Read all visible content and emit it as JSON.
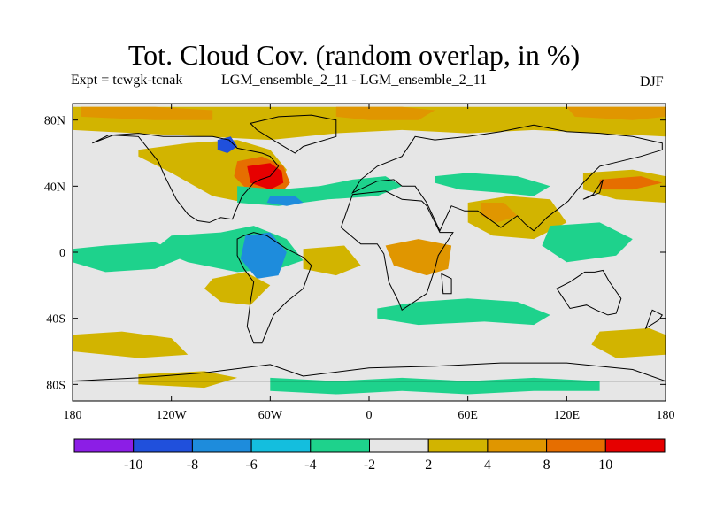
{
  "title": "Tot. Cloud Cov. (random overlap, in %)",
  "expt_label": "Expt = tcwgk-tcnak",
  "subtitle": "LGM_ensemble_2_11 - LGM_ensemble_2_11",
  "season": "DJF",
  "lat_ticks": [
    {
      "value": 80,
      "label": "80N"
    },
    {
      "value": 40,
      "label": "40N"
    },
    {
      "value": 0,
      "label": "0"
    },
    {
      "value": -40,
      "label": "40S"
    },
    {
      "value": -80,
      "label": "80S"
    }
  ],
  "lon_ticks": [
    {
      "value": -180,
      "label": "180"
    },
    {
      "value": -120,
      "label": "120W"
    },
    {
      "value": -60,
      "label": "60W"
    },
    {
      "value": 0,
      "label": "0"
    },
    {
      "value": 60,
      "label": "60E"
    },
    {
      "value": 120,
      "label": "120E"
    },
    {
      "value": 180,
      "label": "180"
    }
  ],
  "colorbar": {
    "bins": [
      {
        "color": "#8c1ee6"
      },
      {
        "color": "#2050dc"
      },
      {
        "color": "#1e8cdc"
      },
      {
        "color": "#14bede"
      },
      {
        "color": "#1ed28c"
      },
      {
        "color": "#e6e6e6"
      },
      {
        "color": "#d2b400"
      },
      {
        "color": "#e09600"
      },
      {
        "color": "#e66e00"
      },
      {
        "color": "#e60000"
      }
    ],
    "labels": [
      "-10",
      "-8",
      "-6",
      "-4",
      "-2",
      "2",
      "4",
      "8",
      "10"
    ]
  },
  "colors": {
    "neutral": "#e6e6e6",
    "coastline": "#000000"
  },
  "anomalies": [
    {
      "name": "north-polar-band",
      "color": "#d2b400",
      "lon": [
        -180,
        -140,
        -100,
        -60,
        -20,
        20,
        60,
        100,
        140,
        180,
        180,
        140,
        100,
        60,
        20,
        -20,
        -60,
        -100,
        -140,
        -180
      ],
      "lat": [
        88,
        88,
        88,
        88,
        88,
        88,
        88,
        88,
        88,
        88,
        70,
        72,
        74,
        72,
        74,
        72,
        68,
        70,
        72,
        74
      ]
    },
    {
      "name": "north-polar-orange-1",
      "color": "#e09600",
      "lon": [
        -175,
        -130,
        -95,
        -95,
        -130,
        -175
      ],
      "lat": [
        88,
        88,
        86,
        80,
        80,
        82
      ]
    },
    {
      "name": "north-polar-orange-2",
      "color": "#e09600",
      "lon": [
        -20,
        20,
        40,
        30,
        0,
        -20
      ],
      "lat": [
        88,
        88,
        86,
        80,
        80,
        82
      ]
    },
    {
      "name": "north-polar-orange-3",
      "color": "#e09600",
      "lon": [
        120,
        170,
        180,
        180,
        160,
        125
      ],
      "lat": [
        88,
        88,
        88,
        82,
        80,
        82
      ]
    },
    {
      "name": "canada-gain",
      "color": "#d2b400",
      "lon": [
        -140,
        -110,
        -80,
        -60,
        -50,
        -55,
        -75,
        -95,
        -120,
        -140
      ],
      "lat": [
        62,
        66,
        68,
        62,
        50,
        38,
        30,
        34,
        48,
        58
      ]
    },
    {
      "name": "labrador-red",
      "color": "#e66e00",
      "lon": [
        -80,
        -65,
        -52,
        -48,
        -55,
        -72,
        -82
      ],
      "lat": [
        55,
        58,
        52,
        42,
        34,
        36,
        46
      ]
    },
    {
      "name": "labrador-core",
      "color": "#e60000",
      "lon": [
        -74,
        -60,
        -53,
        -52,
        -60,
        -72
      ],
      "lat": [
        52,
        54,
        49,
        42,
        38,
        42
      ]
    },
    {
      "name": "hudson-blue",
      "color": "#2050dc",
      "lon": [
        -92,
        -84,
        -80,
        -86,
        -92
      ],
      "lat": [
        68,
        70,
        64,
        60,
        62
      ]
    },
    {
      "name": "atlantic-green-band",
      "color": "#1ed28c",
      "lon": [
        -80,
        -55,
        -30,
        -10,
        10,
        20,
        5,
        -25,
        -55,
        -80
      ],
      "lat": [
        40,
        38,
        40,
        44,
        46,
        40,
        34,
        32,
        28,
        30
      ]
    },
    {
      "name": "gulf-blue",
      "color": "#1e8cdc",
      "lon": [
        -60,
        -45,
        -40,
        -50,
        -62
      ],
      "lat": [
        34,
        34,
        30,
        28,
        30
      ]
    },
    {
      "name": "eurasia-green",
      "color": "#1ed28c",
      "lon": [
        40,
        60,
        90,
        110,
        100,
        80,
        55,
        40
      ],
      "lat": [
        46,
        48,
        46,
        40,
        34,
        36,
        38,
        42
      ]
    },
    {
      "name": "tropical-atlantic-green",
      "color": "#1ed28c",
      "lon": [
        -120,
        -90,
        -70,
        -50,
        -40,
        -55,
        -80,
        -110,
        -130
      ],
      "lat": [
        10,
        12,
        16,
        8,
        -5,
        -10,
        -12,
        -6,
        2
      ]
    },
    {
      "name": "amazon-blue",
      "color": "#1e8cdc",
      "lon": [
        -75,
        -60,
        -50,
        -55,
        -68,
        -78
      ],
      "lat": [
        10,
        12,
        0,
        -14,
        -16,
        -4
      ]
    },
    {
      "name": "east-pacific-green",
      "color": "#1ed28c",
      "lon": [
        -180,
        -160,
        -130,
        -110,
        -130,
        -160,
        -180
      ],
      "lat": [
        2,
        4,
        6,
        -2,
        -10,
        -12,
        -6
      ]
    },
    {
      "name": "south-america-gain",
      "color": "#d2b400",
      "lon": [
        -95,
        -75,
        -60,
        -72,
        -90,
        -100
      ],
      "lat": [
        -16,
        -12,
        -20,
        -32,
        -30,
        -22
      ]
    },
    {
      "name": "south-atlantic-gain",
      "color": "#d2b400",
      "lon": [
        -40,
        -15,
        -5,
        -20,
        -40
      ],
      "lat": [
        2,
        4,
        -8,
        -14,
        -10
      ]
    },
    {
      "name": "africa-orange",
      "color": "#e09600",
      "lon": [
        10,
        30,
        50,
        48,
        35,
        15
      ],
      "lat": [
        4,
        8,
        4,
        -10,
        -14,
        -8
      ]
    },
    {
      "name": "southern-ocean-green",
      "color": "#1ed28c",
      "lon": [
        5,
        30,
        60,
        90,
        110,
        100,
        70,
        30,
        5
      ],
      "lat": [
        -34,
        -30,
        -28,
        -30,
        -38,
        -44,
        -42,
        -44,
        -40
      ]
    },
    {
      "name": "india-gain",
      "color": "#d2b400",
      "lon": [
        60,
        85,
        110,
        120,
        100,
        75,
        60
      ],
      "lat": [
        30,
        34,
        32,
        18,
        8,
        10,
        18
      ]
    },
    {
      "name": "india-orange",
      "color": "#e09600",
      "lon": [
        68,
        82,
        90,
        78,
        68
      ],
      "lat": [
        30,
        30,
        22,
        18,
        22
      ]
    },
    {
      "name": "pacific-gain",
      "color": "#d2b400",
      "lon": [
        130,
        160,
        180,
        180,
        150,
        130
      ],
      "lat": [
        48,
        50,
        46,
        30,
        32,
        38
      ]
    },
    {
      "name": "kuroshio-orange",
      "color": "#e66e00",
      "lon": [
        140,
        165,
        178,
        160,
        140
      ],
      "lat": [
        44,
        46,
        42,
        38,
        38
      ]
    },
    {
      "name": "west-pacific-green",
      "color": "#1ed28c",
      "lon": [
        110,
        140,
        160,
        150,
        120,
        105
      ],
      "lat": [
        16,
        18,
        8,
        -2,
        -6,
        4
      ]
    },
    {
      "name": "southern-pacific-gain",
      "color": "#d2b400",
      "lon": [
        -180,
        -150,
        -120,
        -110,
        -140,
        -180
      ],
      "lat": [
        -50,
        -48,
        -52,
        -62,
        -64,
        -60
      ]
    },
    {
      "name": "south-indian-gain",
      "color": "#d2b400",
      "lon": [
        140,
        170,
        180,
        180,
        150,
        135
      ],
      "lat": [
        -48,
        -46,
        -50,
        -62,
        -64,
        -56
      ]
    },
    {
      "name": "antarctic-green",
      "color": "#1ed28c",
      "lon": [
        -60,
        -20,
        20,
        60,
        100,
        140,
        140,
        100,
        60,
        20,
        -20,
        -60
      ],
      "lat": [
        -76,
        -78,
        -76,
        -78,
        -76,
        -78,
        -84,
        -84,
        -86,
        -84,
        -86,
        -84
      ]
    },
    {
      "name": "antarctic-gain",
      "color": "#d2b400",
      "lon": [
        -140,
        -100,
        -80,
        -100,
        -140
      ],
      "lat": [
        -74,
        -72,
        -76,
        -82,
        -80
      ]
    }
  ],
  "coastlines": [
    {
      "name": "north-america",
      "lon": [
        -168,
        -158,
        -140,
        -128,
        -124,
        -117,
        -110,
        -104,
        -97,
        -90,
        -83,
        -81,
        -77,
        -70,
        -66,
        -60,
        -55,
        -60,
        -65,
        -80,
        -85,
        -95,
        -110,
        -125,
        -140,
        -155,
        -168
      ],
      "lat": [
        66,
        71,
        70,
        55,
        46,
        32,
        23,
        19,
        18,
        21,
        20,
        25,
        34,
        42,
        44,
        46,
        52,
        58,
        60,
        63,
        68,
        70,
        70,
        70,
        72,
        71,
        66
      ]
    },
    {
      "name": "greenland",
      "lon": [
        -72,
        -55,
        -35,
        -20,
        -20,
        -40,
        -45,
        -55,
        -68,
        -72
      ],
      "lat": [
        78,
        82,
        83,
        80,
        70,
        64,
        60,
        66,
        74,
        78
      ]
    },
    {
      "name": "south-america",
      "lon": [
        -80,
        -76,
        -70,
        -62,
        -50,
        -40,
        -35,
        -40,
        -50,
        -58,
        -65,
        -70,
        -74,
        -72,
        -70,
        -76,
        -80
      ],
      "lat": [
        8,
        10,
        12,
        10,
        2,
        -3,
        -8,
        -22,
        -30,
        -38,
        -55,
        -55,
        -45,
        -30,
        -18,
        -10,
        -2
      ]
    },
    {
      "name": "africa",
      "lon": [
        -17,
        -10,
        0,
        10,
        20,
        32,
        35,
        43,
        51,
        42,
        40,
        35,
        20,
        18,
        12,
        9,
        5,
        -5,
        -17
      ],
      "lat": [
        15,
        35,
        36,
        37,
        32,
        31,
        28,
        12,
        12,
        -2,
        -10,
        -25,
        -35,
        -30,
        -18,
        -1,
        5,
        5,
        15
      ]
    },
    {
      "name": "eurasia",
      "lon": [
        -10,
        -5,
        5,
        20,
        28,
        40,
        60,
        80,
        100,
        120,
        140,
        160,
        178,
        178,
        165,
        140,
        130,
        125,
        121,
        108,
        100,
        95,
        90,
        80,
        73,
        66,
        58,
        50,
        43,
        35,
        28,
        20,
        15,
        5,
        -10
      ],
      "lat": [
        36,
        44,
        52,
        58,
        70,
        68,
        70,
        73,
        77,
        73,
        72,
        70,
        66,
        62,
        58,
        52,
        42,
        36,
        31,
        21,
        13,
        17,
        22,
        15,
        20,
        25,
        25,
        28,
        13,
        30,
        40,
        40,
        44,
        43,
        36
      ]
    },
    {
      "name": "australia",
      "lon": [
        114,
        122,
        131,
        137,
        142,
        146,
        153,
        150,
        145,
        138,
        132,
        122,
        114
      ],
      "lat": [
        -22,
        -18,
        -12,
        -12,
        -11,
        -18,
        -28,
        -37,
        -38,
        -35,
        -32,
        -34,
        -22
      ]
    },
    {
      "name": "antarctica",
      "lon": [
        -180,
        -140,
        -100,
        -60,
        -40,
        0,
        40,
        80,
        120,
        160,
        180
      ],
      "lat": [
        -78,
        -76,
        -73,
        -68,
        -75,
        -70,
        -69,
        -67,
        -67,
        -71,
        -78
      ]
    },
    {
      "name": "madagascar",
      "lon": [
        44,
        50,
        50,
        45,
        44
      ],
      "lat": [
        -13,
        -16,
        -25,
        -25,
        -13
      ]
    },
    {
      "name": "new-zealand",
      "lon": [
        172,
        178,
        176,
        168,
        172
      ],
      "lat": [
        -35,
        -38,
        -41,
        -46,
        -35
      ]
    },
    {
      "name": "japan",
      "lon": [
        130,
        140,
        142,
        136,
        130
      ],
      "lat": [
        32,
        36,
        44,
        35,
        32
      ]
    }
  ]
}
